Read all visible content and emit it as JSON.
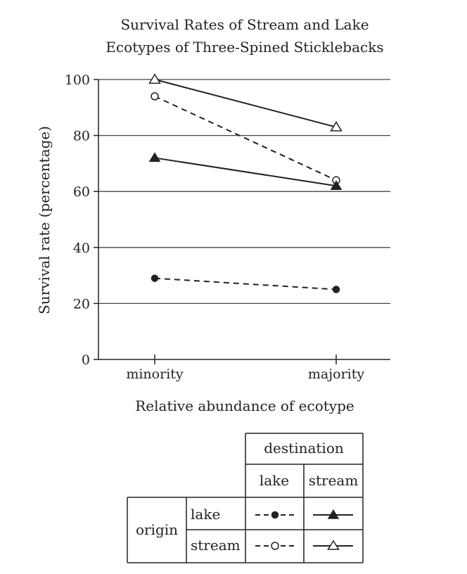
{
  "chart_data": {
    "type": "line",
    "title": [
      "Survival Rates of Stream and Lake",
      "Ecotypes of Three-Spined Sticklebacks"
    ],
    "xlabel": "Relative abundance of ecotype",
    "ylabel": "Survival rate (percentage)",
    "categories": [
      "minority",
      "majority"
    ],
    "ylim": [
      0,
      100
    ],
    "yticks": [
      0,
      20,
      40,
      60,
      80,
      100
    ],
    "grid": "horizontal",
    "series": [
      {
        "origin": "stream",
        "destination": "stream",
        "marker": "open-triangle",
        "line": "solid",
        "values": [
          100,
          83
        ]
      },
      {
        "origin": "stream",
        "destination": "lake",
        "marker": "open-circle",
        "line": "dashed",
        "values": [
          94,
          64
        ]
      },
      {
        "origin": "lake",
        "destination": "stream",
        "marker": "filled-triangle",
        "line": "solid",
        "values": [
          72,
          62
        ]
      },
      {
        "origin": "lake",
        "destination": "lake",
        "marker": "filled-circle",
        "line": "dashed",
        "values": [
          29,
          25
        ]
      }
    ],
    "legend": {
      "placement": "bottom-right",
      "column_header": "destination",
      "columns": [
        "lake",
        "stream"
      ],
      "row_header": "origin",
      "rows": [
        "lake",
        "stream"
      ]
    }
  }
}
